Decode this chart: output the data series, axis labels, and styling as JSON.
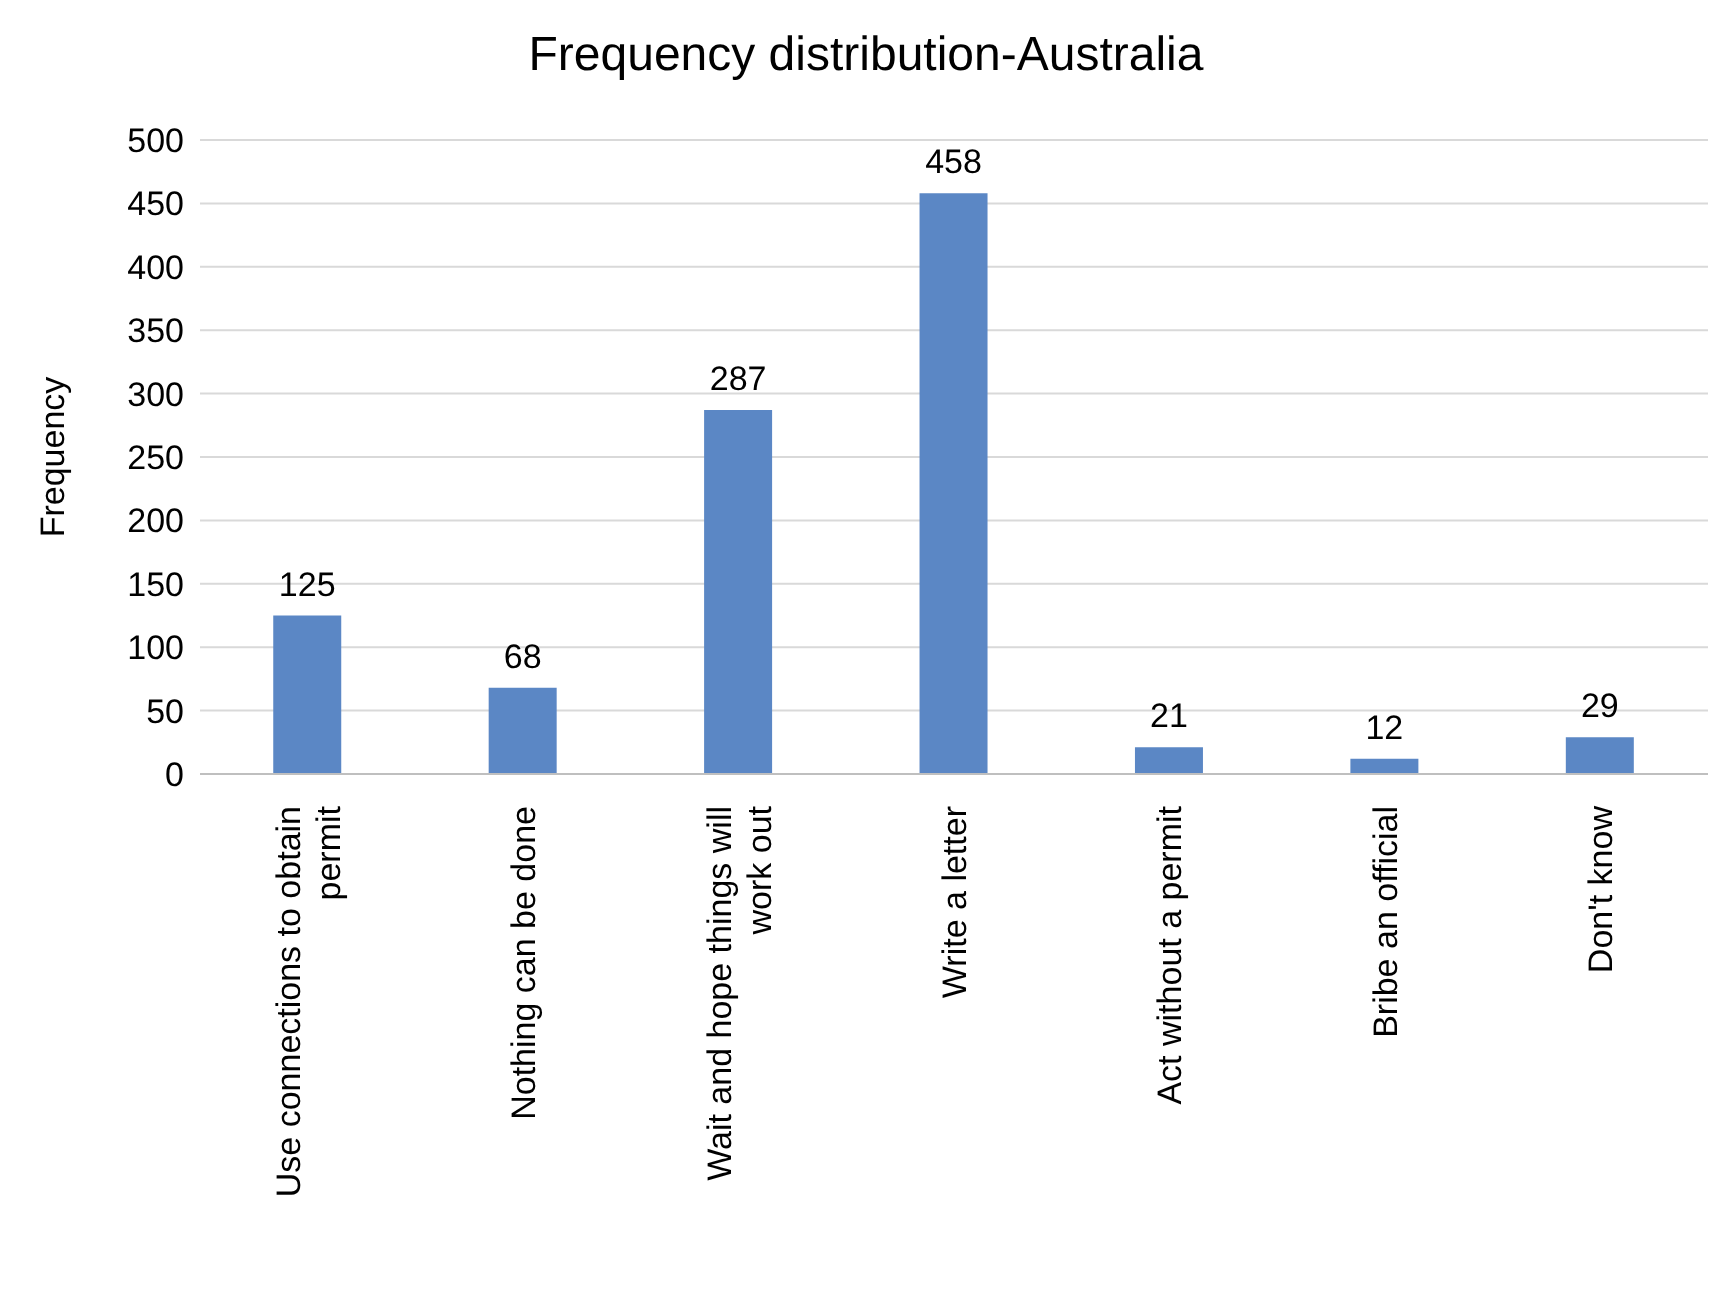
{
  "chart_data": {
    "type": "bar",
    "title": "Frequency distribution-Australia",
    "ylabel": "Frequency",
    "categories": [
      "Use connections to obtain permit",
      "Nothing can be done",
      "Wait and hope things will work out",
      "Write a letter",
      "Act without a permit",
      "Bribe an official",
      "Don't know"
    ],
    "values": [
      125,
      68,
      287,
      458,
      21,
      12,
      29
    ],
    "color": "#5b87c5",
    "ylim": [
      0,
      500
    ],
    "yticks": [
      0,
      50,
      100,
      150,
      200,
      250,
      300,
      350,
      400,
      450,
      500
    ],
    "grid": "y",
    "data_labels": true
  }
}
